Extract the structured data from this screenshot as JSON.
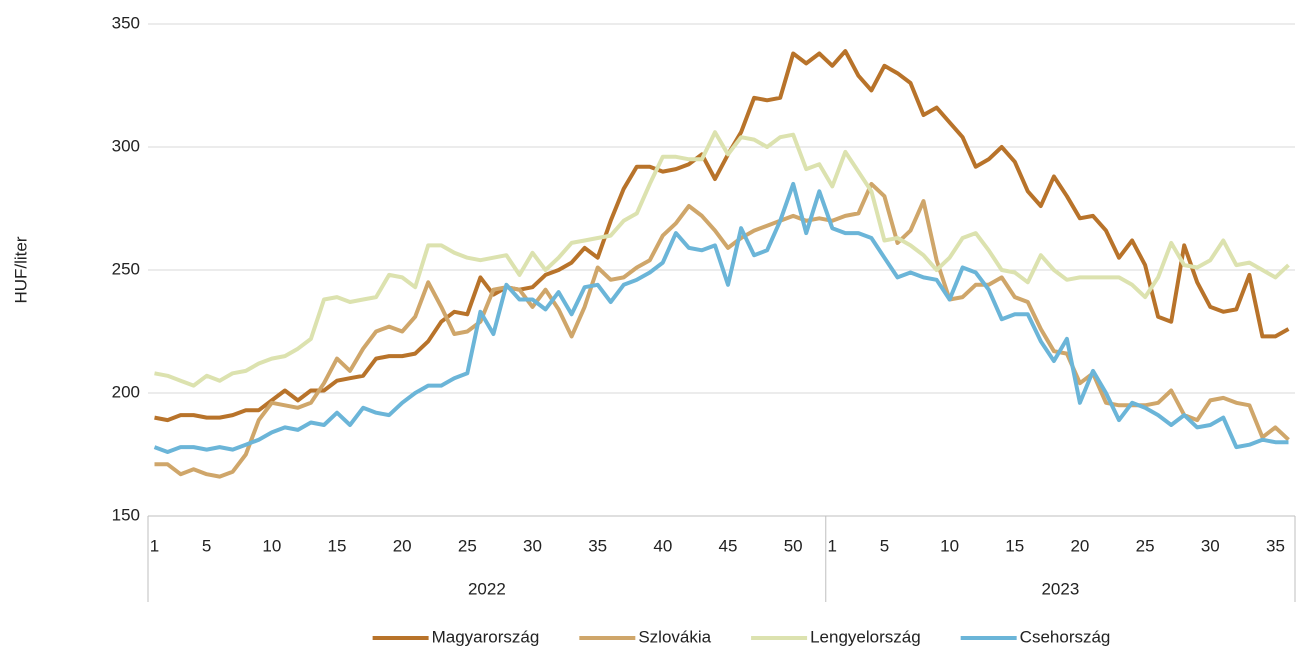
{
  "chart_data": {
    "type": "line",
    "y_label": "HUF/liter",
    "groups": [
      {
        "name": "2022",
        "categories": [
          "1",
          null,
          null,
          null,
          "5",
          null,
          null,
          null,
          null,
          "10",
          null,
          null,
          null,
          null,
          "15",
          null,
          null,
          null,
          null,
          "20",
          null,
          null,
          null,
          null,
          "25",
          null,
          null,
          null,
          null,
          "30",
          null,
          null,
          null,
          null,
          "35",
          null,
          null,
          null,
          null,
          "40",
          null,
          null,
          null,
          null,
          "45",
          null,
          null,
          null,
          null,
          "50",
          null,
          null
        ]
      },
      {
        "name": "2023",
        "categories": [
          "1",
          null,
          null,
          null,
          "5",
          null,
          null,
          null,
          null,
          "10",
          null,
          null,
          null,
          null,
          "15",
          null,
          null,
          null,
          null,
          "20",
          null,
          null,
          null,
          null,
          "25",
          null,
          null,
          null,
          null,
          "30",
          null,
          null,
          null,
          null,
          "35",
          null
        ]
      }
    ],
    "ylim": [
      150,
      350
    ],
    "yticks": [
      150,
      200,
      250,
      300,
      350
    ],
    "grid": true,
    "legend": "bottom",
    "series": [
      {
        "name": "Magyarország",
        "color": "#b8732a",
        "values": [
          190,
          189,
          191,
          191,
          190,
          190,
          191,
          193,
          193,
          197,
          201,
          197,
          201,
          201,
          205,
          206,
          207,
          214,
          215,
          215,
          216,
          221,
          229,
          233,
          232,
          247,
          240,
          243,
          242,
          243,
          248,
          250,
          253,
          259,
          255,
          270,
          283,
          292,
          292,
          290,
          291,
          293,
          297,
          287,
          297,
          306,
          320,
          319,
          320,
          338,
          334,
          338,
          333,
          339,
          329,
          323,
          333,
          330,
          326,
          313,
          316,
          310,
          304,
          292,
          295,
          300,
          294,
          282,
          276,
          288,
          280,
          271,
          272,
          266,
          255,
          262,
          252,
          231,
          229,
          260,
          245,
          235,
          233,
          234,
          248,
          223,
          223,
          226
        ]
      },
      {
        "name": "Szlovákia",
        "color": "#cfa66a",
        "values": [
          171,
          171,
          167,
          169,
          167,
          166,
          168,
          175,
          189,
          196,
          195,
          194,
          196,
          204,
          214,
          209,
          218,
          225,
          227,
          225,
          231,
          245,
          235,
          224,
          225,
          229,
          242,
          243,
          242,
          235,
          242,
          234,
          223,
          235,
          251,
          246,
          247,
          251,
          254,
          264,
          269,
          276,
          272,
          266,
          259,
          263,
          266,
          268,
          270,
          272,
          270,
          271,
          270,
          272,
          273,
          285,
          280,
          261,
          266,
          278,
          254,
          238,
          239,
          244,
          244,
          247,
          239,
          237,
          226,
          217,
          216,
          204,
          208,
          196,
          195,
          195,
          195,
          196,
          201,
          191,
          189,
          197,
          198,
          196,
          195,
          182,
          186,
          181
        ]
      },
      {
        "name": "Lengyelország",
        "color": "#dce2af",
        "values": [
          208,
          207,
          205,
          203,
          207,
          205,
          208,
          209,
          212,
          214,
          215,
          218,
          222,
          238,
          239,
          237,
          238,
          239,
          248,
          247,
          243,
          260,
          260,
          257,
          255,
          254,
          255,
          256,
          248,
          257,
          250,
          255,
          261,
          262,
          263,
          264,
          270,
          273,
          285,
          296,
          296,
          295,
          295,
          306,
          297,
          304,
          303,
          300,
          304,
          305,
          291,
          293,
          284,
          298,
          290,
          282,
          262,
          263,
          260,
          256,
          250,
          255,
          263,
          265,
          258,
          250,
          249,
          245,
          256,
          250,
          246,
          247,
          247,
          247,
          247,
          244,
          239,
          247,
          261,
          252,
          251,
          254,
          262,
          252,
          253,
          250,
          247,
          252
        ]
      },
      {
        "name": "Csehország",
        "color": "#6bb5d8",
        "values": [
          178,
          176,
          178,
          178,
          177,
          178,
          177,
          179,
          181,
          184,
          186,
          185,
          188,
          187,
          192,
          187,
          194,
          192,
          191,
          196,
          200,
          203,
          203,
          206,
          208,
          233,
          224,
          244,
          238,
          238,
          234,
          241,
          232,
          243,
          244,
          237,
          244,
          246,
          249,
          253,
          265,
          259,
          258,
          260,
          244,
          267,
          256,
          258,
          270,
          285,
          265,
          282,
          267,
          265,
          265,
          263,
          255,
          247,
          249,
          247,
          246,
          238,
          251,
          249,
          242,
          230,
          232,
          232,
          221,
          213,
          222,
          196,
          209,
          200,
          189,
          196,
          194,
          191,
          187,
          191,
          186,
          187,
          190,
          178,
          179,
          181,
          180,
          180
        ]
      }
    ]
  }
}
